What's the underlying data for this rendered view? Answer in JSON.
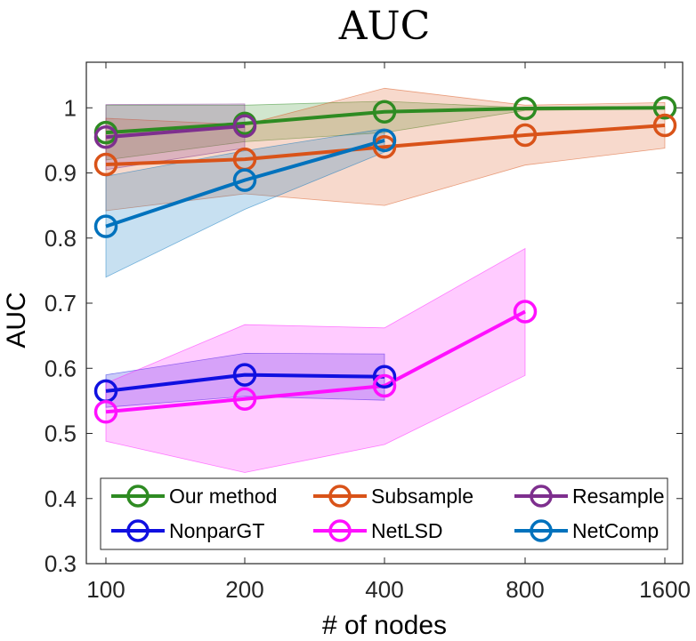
{
  "chart_data": {
    "type": "line",
    "title": "AUC",
    "xlabel": "# of nodes",
    "ylabel": "AUC",
    "categories": [
      "100",
      "200",
      "400",
      "800",
      "1600"
    ],
    "yticks": [
      "0.3",
      "0.4",
      "0.5",
      "0.6",
      "0.7",
      "0.8",
      "0.9",
      "1"
    ],
    "ylim": [
      0.3,
      1.07
    ],
    "legend_position": "bottom",
    "series": [
      {
        "name": "Our method",
        "color": "#2e8b22",
        "values": [
          0.962,
          0.976,
          0.994,
          0.999,
          1.0
        ],
        "lower": [
          0.92,
          0.948,
          0.962,
          0.996,
          0.998
        ],
        "upper": [
          1.004,
          1.004,
          1.01,
          1.0,
          1.002
        ]
      },
      {
        "name": "Subsample",
        "color": "#d95319",
        "values": [
          0.913,
          0.921,
          0.94,
          0.958,
          0.973
        ],
        "lower": [
          0.842,
          0.868,
          0.85,
          0.912,
          0.938
        ],
        "upper": [
          0.984,
          0.974,
          1.03,
          1.004,
          1.008
        ]
      },
      {
        "name": "Resample",
        "color": "#7e2f8e",
        "values": [
          0.955,
          0.972,
          null,
          null,
          null
        ],
        "lower": [
          0.905,
          0.938,
          null,
          null,
          null
        ],
        "upper": [
          1.005,
          1.006,
          null,
          null,
          null
        ]
      },
      {
        "name": "NonparGT",
        "color": "#1010e0",
        "values": [
          0.565,
          0.59,
          0.587,
          null,
          null
        ],
        "lower": [
          0.54,
          0.557,
          0.551,
          null,
          null
        ],
        "upper": [
          0.59,
          0.623,
          0.622,
          null,
          null
        ]
      },
      {
        "name": "NetLSD",
        "color": "#ff10ff",
        "values": [
          0.533,
          0.553,
          0.573,
          0.687,
          null
        ],
        "lower": [
          0.488,
          0.44,
          0.483,
          0.589,
          null
        ],
        "upper": [
          0.577,
          0.667,
          0.662,
          0.784,
          null
        ]
      },
      {
        "name": "NetComp",
        "color": "#0072bd",
        "values": [
          0.818,
          0.889,
          0.95,
          null,
          null
        ],
        "lower": [
          0.74,
          0.844,
          0.932,
          null,
          null
        ],
        "upper": [
          0.895,
          0.934,
          0.968,
          null,
          null
        ]
      }
    ]
  }
}
